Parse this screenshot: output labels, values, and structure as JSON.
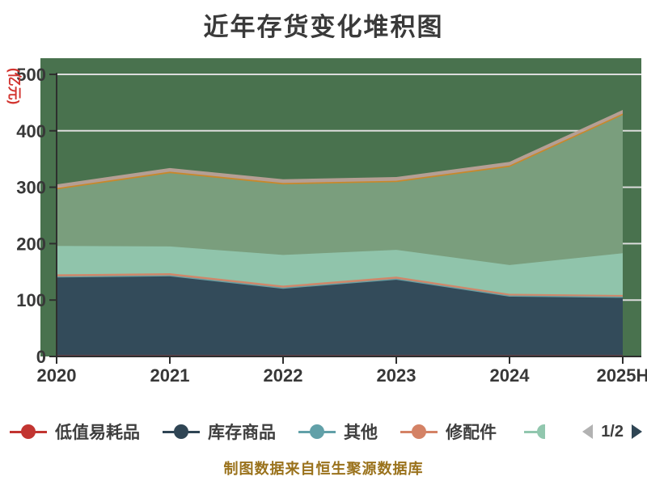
{
  "title": "近年存货变化堆积图",
  "footer": "制图数据来自恒生聚源数据库",
  "legend": {
    "page": "1/2",
    "visible_items": [
      "低值易耗品",
      "库存商品",
      "其他",
      "修配件"
    ],
    "partial_next_item_color": "#91c7ae"
  },
  "chart_data": {
    "type": "area",
    "stacked": true,
    "title": "近年存货变化堆积图",
    "xlabel": "",
    "ylabel": "(亿元)",
    "categories": [
      "2020",
      "2021",
      "2022",
      "2023",
      "2024",
      "2025H"
    ],
    "ylim": [
      0,
      500
    ],
    "ytick_step": 100,
    "grid": true,
    "legend_position": "bottom",
    "plot_background_color": "#49724E",
    "gridline_color": "#dcdcdc",
    "axis_color": "#2e2e2e",
    "tick_label_color": "#383838",
    "series": [
      {
        "name": "低值易耗品",
        "color": "#c23531",
        "legend_page": 1,
        "values": [
          2,
          2,
          2,
          2,
          2,
          2
        ]
      },
      {
        "name": "库存商品",
        "color": "#2f4554",
        "legend_page": 1,
        "values": [
          138,
          140,
          118,
          134,
          104,
          102
        ]
      },
      {
        "name": "其他",
        "color": "#61a0a8",
        "legend_page": 1,
        "values": [
          2,
          2,
          2,
          2,
          2,
          2
        ]
      },
      {
        "name": "修配件",
        "color": "#d48265",
        "legend_page": 1,
        "values": [
          3.5,
          3.5,
          3.5,
          3.5,
          3,
          3
        ]
      },
      {
        "name": "",
        "color": "#91c7ae",
        "legend_page": 2,
        "values": [
          50.5,
          47.5,
          54.5,
          47.5,
          51,
          74
        ]
      },
      {
        "name": "",
        "color": "#749f83",
        "legend_page": 2,
        "values": [
          100,
          130,
          125,
          120,
          174,
          245
        ]
      },
      {
        "name": "",
        "color": "#ca8622",
        "legend_page": 2,
        "values": [
          2.5,
          2.5,
          2.5,
          2.5,
          2.5,
          2.5
        ]
      },
      {
        "name": "",
        "color": "#bda29a",
        "legend_page": 2,
        "values": [
          6.5,
          6.5,
          6.5,
          6.5,
          6.5,
          6.5
        ]
      }
    ],
    "totals_visible_top": [
      305,
      334,
      314,
      318,
      345,
      437
    ]
  }
}
